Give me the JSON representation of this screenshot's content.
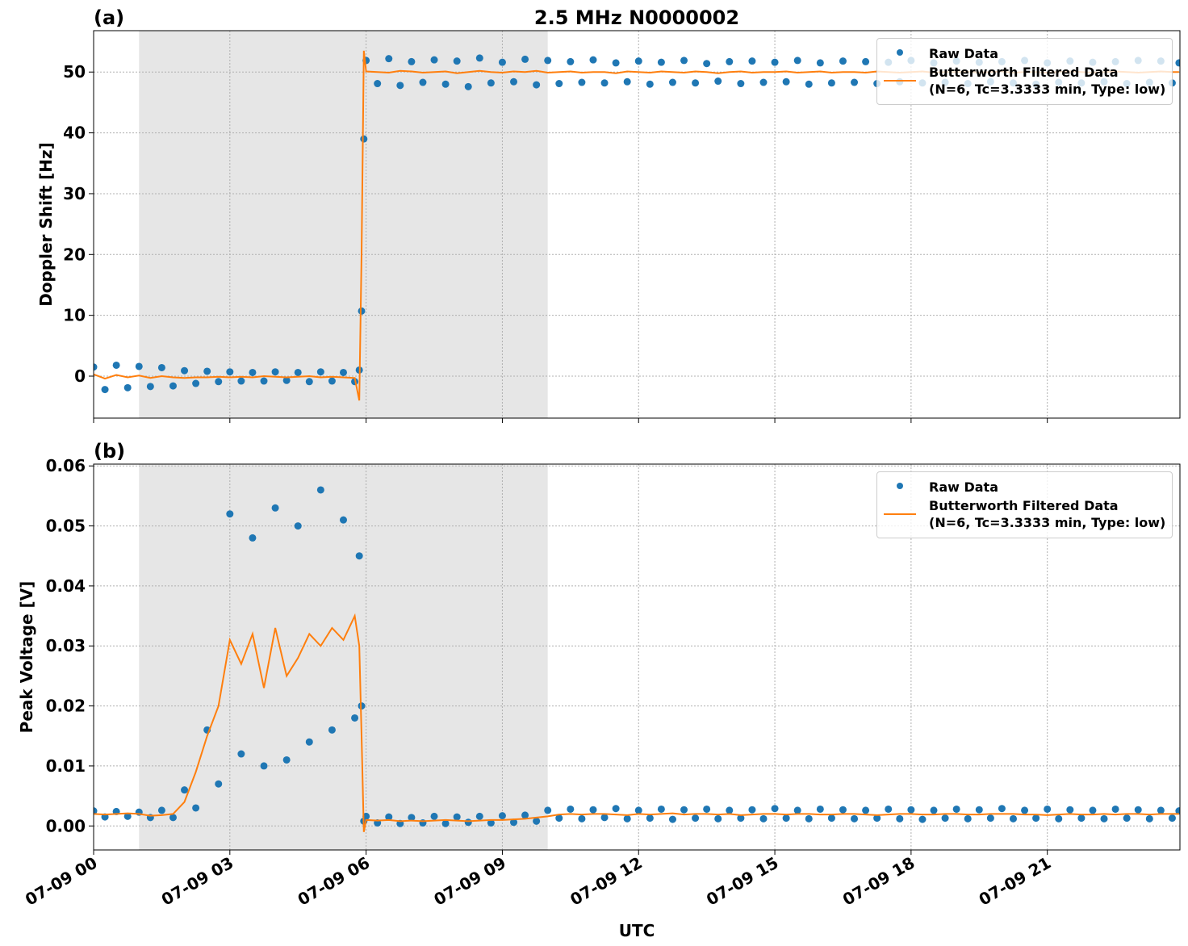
{
  "chart_data": [
    {
      "type": "line",
      "title": "2.5 MHz N0000002",
      "panel_label": "(a)",
      "ylabel": "Doppler Shift [Hz]",
      "xlim": [
        0,
        23.92
      ],
      "xticks": [
        0,
        3,
        6,
        9,
        12,
        15,
        18,
        21
      ],
      "ylim": [
        -6.9,
        56.8
      ],
      "yticks": [
        0,
        10,
        20,
        30,
        40,
        50
      ],
      "grid": true,
      "legend": "upper right",
      "shaded_span": [
        1,
        10
      ],
      "shade_color": "#e6e6e6",
      "x": [
        0,
        0.25,
        0.5,
        0.75,
        1,
        1.25,
        1.5,
        1.75,
        2,
        2.25,
        2.5,
        2.75,
        3,
        3.25,
        3.5,
        3.75,
        4,
        4.25,
        4.5,
        4.75,
        5,
        5.25,
        5.5,
        5.75,
        5.85,
        5.9,
        5.95,
        6,
        6.25,
        6.5,
        6.75,
        7,
        7.25,
        7.5,
        7.75,
        8,
        8.25,
        8.5,
        8.75,
        9,
        9.25,
        9.5,
        9.75,
        10,
        10.25,
        10.5,
        10.75,
        11,
        11.25,
        11.5,
        11.75,
        12,
        12.25,
        12.5,
        12.75,
        13,
        13.25,
        13.5,
        13.75,
        14,
        14.25,
        14.5,
        14.75,
        15,
        15.25,
        15.5,
        15.75,
        16,
        16.25,
        16.5,
        16.75,
        17,
        17.25,
        17.5,
        17.75,
        18,
        18.25,
        18.5,
        18.75,
        19,
        19.25,
        19.5,
        19.75,
        20,
        20.25,
        20.5,
        20.75,
        21,
        21.25,
        21.5,
        21.75,
        22,
        22.25,
        22.5,
        22.75,
        23,
        23.25,
        23.5,
        23.75,
        23.9
      ],
      "series": [
        {
          "name": "Raw Data",
          "kind": "scatter",
          "color": "#1f77b4",
          "values": [
            1.5,
            -2.2,
            1.8,
            -1.9,
            1.6,
            -1.7,
            1.4,
            -1.6,
            0.9,
            -1.2,
            0.8,
            -0.9,
            0.7,
            -0.8,
            0.6,
            -0.8,
            0.7,
            -0.7,
            0.6,
            -0.9,
            0.7,
            -0.8,
            0.6,
            -0.9,
            1.0,
            10.7,
            39.0,
            51.9,
            48.1,
            52.2,
            47.8,
            51.7,
            48.3,
            52.0,
            48.0,
            51.8,
            47.6,
            52.3,
            48.2,
            51.6,
            48.4,
            52.1,
            47.9,
            51.9,
            48.1,
            51.7,
            48.3,
            52.0,
            48.2,
            51.5,
            48.4,
            51.8,
            48.0,
            51.6,
            48.3,
            51.9,
            48.2,
            51.4,
            48.5,
            51.7,
            48.1,
            51.8,
            48.3,
            51.6,
            48.4,
            51.9,
            48.0,
            51.5,
            48.2,
            51.8,
            48.3,
            51.7,
            48.1,
            51.6,
            48.4,
            51.9,
            48.2,
            51.5,
            48.3,
            51.8,
            48.1,
            51.6,
            48.4,
            51.7,
            48.2,
            51.9,
            48.0,
            51.5,
            48.3,
            51.8,
            48.2,
            51.6,
            48.4,
            51.7,
            48.1,
            51.9,
            48.3,
            51.8,
            48.2,
            51.5
          ]
        },
        {
          "name": "Butterworth Filtered Data\n(N=6, Tc=3.3333 min, Type: low)",
          "kind": "line",
          "color": "#ff7f0e",
          "values": [
            0.3,
            -0.4,
            0.2,
            -0.2,
            0.1,
            -0.3,
            0.0,
            -0.2,
            -0.3,
            -0.2,
            -0.2,
            -0.1,
            -0.2,
            -0.1,
            -0.2,
            0.0,
            -0.1,
            -0.2,
            -0.1,
            0.0,
            -0.2,
            -0.1,
            -0.2,
            -0.3,
            -4.0,
            20,
            53.5,
            50.1,
            50.0,
            49.9,
            50.2,
            50.1,
            49.9,
            50.0,
            50.1,
            49.8,
            50.0,
            50.2,
            50.0,
            49.9,
            50.1,
            50.0,
            50.2,
            49.9,
            50.0,
            50.1,
            49.9,
            50.0,
            50.0,
            49.8,
            50.1,
            50.0,
            49.9,
            50.1,
            50.0,
            49.9,
            50.1,
            50.0,
            49.8,
            50.0,
            50.1,
            49.9,
            50.0,
            50.0,
            50.1,
            49.9,
            50.0,
            50.1,
            49.9,
            50.0,
            50.0,
            49.9,
            50.1,
            50.0,
            49.9,
            50.0,
            50.1,
            49.9,
            50.0,
            50.0,
            50.1,
            49.9,
            50.0,
            50.1,
            49.9,
            50.0,
            50.0,
            49.9,
            50.0,
            50.1,
            50.0,
            49.9,
            50.0,
            50.1,
            50.0,
            49.9,
            50.0,
            50.1,
            50.0,
            50.0
          ]
        }
      ]
    },
    {
      "type": "line",
      "panel_label": "(b)",
      "ylabel": "Peak Voltage [V]",
      "xlabel": "UTC",
      "xlim": [
        0,
        23.92
      ],
      "xticks": [
        {
          "value": 0,
          "label": "07-09 00"
        },
        {
          "value": 3,
          "label": "07-09 03"
        },
        {
          "value": 6,
          "label": "07-09 06"
        },
        {
          "value": 9,
          "label": "07-09 09"
        },
        {
          "value": 12,
          "label": "07-09 12"
        },
        {
          "value": 15,
          "label": "07-09 15"
        },
        {
          "value": 18,
          "label": "07-09 18"
        },
        {
          "value": 21,
          "label": "07-09 21"
        }
      ],
      "ylim": [
        -0.004,
        0.0603
      ],
      "yticks": [
        {
          "value": 0,
          "label": "0.00"
        },
        0.01,
        0.02,
        0.03,
        0.04,
        0.05,
        0.06
      ],
      "grid": true,
      "legend": "upper right",
      "shaded_span": [
        1,
        10
      ],
      "shade_color": "#e6e6e6",
      "x": [
        0,
        0.25,
        0.5,
        0.75,
        1,
        1.25,
        1.5,
        1.75,
        2,
        2.25,
        2.5,
        2.75,
        3,
        3.25,
        3.5,
        3.75,
        4,
        4.25,
        4.5,
        4.75,
        5,
        5.25,
        5.5,
        5.75,
        5.85,
        5.9,
        5.95,
        6,
        6.25,
        6.5,
        6.75,
        7,
        7.25,
        7.5,
        7.75,
        8,
        8.25,
        8.5,
        8.75,
        9,
        9.25,
        9.5,
        9.75,
        10,
        10.25,
        10.5,
        10.75,
        11,
        11.25,
        11.5,
        11.75,
        12,
        12.25,
        12.5,
        12.75,
        13,
        13.25,
        13.5,
        13.75,
        14,
        14.25,
        14.5,
        14.75,
        15,
        15.25,
        15.5,
        15.75,
        16,
        16.25,
        16.5,
        16.75,
        17,
        17.25,
        17.5,
        17.75,
        18,
        18.25,
        18.5,
        18.75,
        19,
        19.25,
        19.5,
        19.75,
        20,
        20.25,
        20.5,
        20.75,
        21,
        21.25,
        21.5,
        21.75,
        22,
        22.25,
        22.5,
        22.75,
        23,
        23.25,
        23.5,
        23.75,
        23.9
      ],
      "series": [
        {
          "name": "Raw Data",
          "kind": "scatter",
          "color": "#1f77b4",
          "values": [
            0.0025,
            0.0015,
            0.0024,
            0.0016,
            0.0023,
            0.0014,
            0.0026,
            0.0014,
            0.006,
            0.003,
            0.016,
            0.007,
            0.052,
            0.012,
            0.048,
            0.01,
            0.053,
            0.011,
            0.05,
            0.014,
            0.056,
            0.016,
            0.051,
            0.018,
            0.045,
            0.02,
            0.0008,
            0.0016,
            0.0005,
            0.0015,
            0.0004,
            0.0014,
            0.0005,
            0.0016,
            0.0004,
            0.0015,
            0.0006,
            0.0016,
            0.0005,
            0.0017,
            0.0006,
            0.0018,
            0.0008,
            0.0026,
            0.0013,
            0.0028,
            0.0012,
            0.0027,
            0.0014,
            0.0029,
            0.0012,
            0.0026,
            0.0013,
            0.0028,
            0.0011,
            0.0027,
            0.0013,
            0.0028,
            0.0012,
            0.0026,
            0.0013,
            0.0027,
            0.0012,
            0.0029,
            0.0013,
            0.0026,
            0.0012,
            0.0028,
            0.0013,
            0.0027,
            0.0012,
            0.0026,
            0.0013,
            0.0028,
            0.0012,
            0.0027,
            0.0011,
            0.0026,
            0.0013,
            0.0028,
            0.0012,
            0.0027,
            0.0013,
            0.0029,
            0.0012,
            0.0026,
            0.0013,
            0.0028,
            0.0012,
            0.0027,
            0.0013,
            0.0026,
            0.0012,
            0.0028,
            0.0013,
            0.0027,
            0.0012,
            0.0026,
            0.0013,
            0.0025
          ]
        },
        {
          "name": "Butterworth Filtered Data\n(N=6, Tc=3.3333 min, Type: low)",
          "kind": "line",
          "color": "#ff7f0e",
          "values": [
            0.002,
            0.0019,
            0.002,
            0.0021,
            0.002,
            0.0017,
            0.0018,
            0.002,
            0.004,
            0.009,
            0.015,
            0.02,
            0.031,
            0.027,
            0.032,
            0.023,
            0.033,
            0.025,
            0.028,
            0.032,
            0.03,
            0.033,
            0.031,
            0.035,
            0.03,
            0.015,
            -0.001,
            0.001,
            0.0009,
            0.001,
            0.0008,
            0.0009,
            0.0008,
            0.0009,
            0.001,
            0.0009,
            0.0008,
            0.0009,
            0.001,
            0.001,
            0.0011,
            0.0012,
            0.0014,
            0.0016,
            0.0019,
            0.002,
            0.0019,
            0.002,
            0.002,
            0.0019,
            0.0018,
            0.002,
            0.0019,
            0.002,
            0.0021,
            0.0019,
            0.002,
            0.002,
            0.0019,
            0.002,
            0.0018,
            0.0019,
            0.002,
            0.002,
            0.0019,
            0.002,
            0.002,
            0.0019,
            0.0019,
            0.002,
            0.002,
            0.0019,
            0.0018,
            0.0019,
            0.002,
            0.002,
            0.0019,
            0.0019,
            0.002,
            0.002,
            0.0019,
            0.0019,
            0.002,
            0.002,
            0.002,
            0.0019,
            0.0019,
            0.0018,
            0.0019,
            0.002,
            0.0019,
            0.0019,
            0.002,
            0.0019,
            0.002,
            0.002,
            0.0019,
            0.002,
            0.002,
            0.002
          ]
        }
      ]
    }
  ]
}
